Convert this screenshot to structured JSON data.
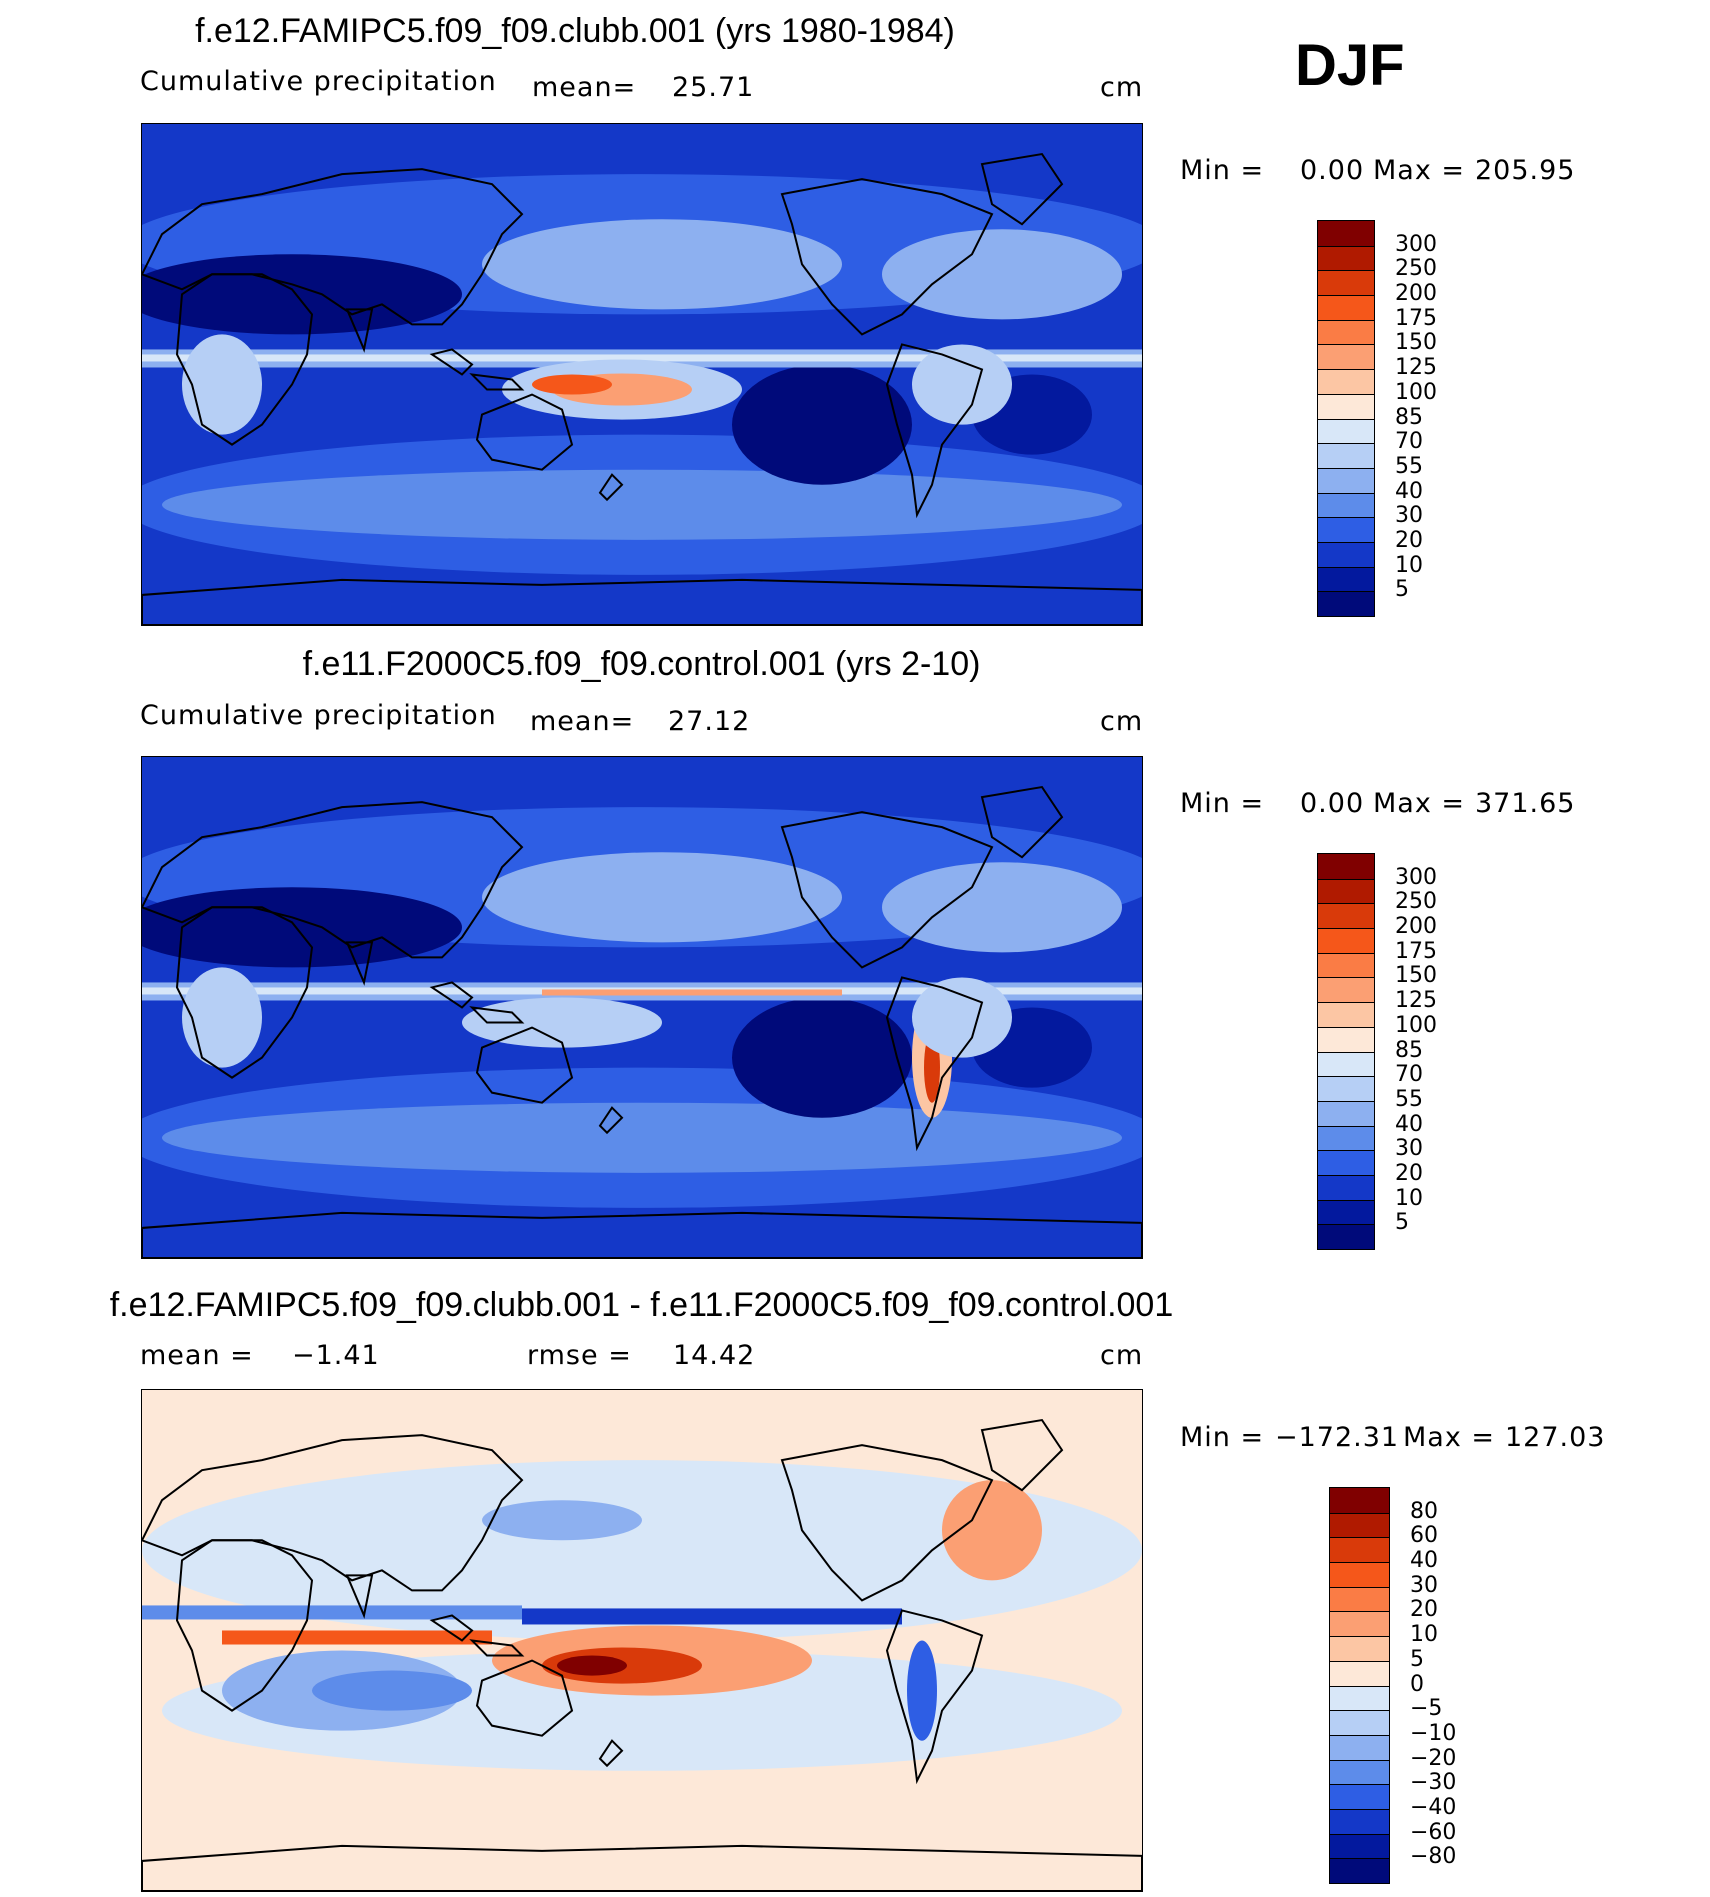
{
  "season": "DJF",
  "chart_data": [
    {
      "type": "heatmap",
      "title": "f.e12.FAMIPC5.f09_f09.clubb.001 (yrs 1980-1984)",
      "variable": "Cumulative precipitation",
      "mean_label": "mean=",
      "mean_value": "25.71",
      "units": "cm",
      "min_label": "Min =",
      "min_value": "0.00",
      "max_label": "Max =",
      "max_value": "205.95",
      "colorbar_levels": [
        "300",
        "250",
        "200",
        "175",
        "150",
        "125",
        "100",
        "85",
        "70",
        "55",
        "40",
        "30",
        "20",
        "10",
        "5"
      ],
      "colorbar_colors": [
        "#800000",
        "#b01a00",
        "#d93a0a",
        "#f5571a",
        "#fa7c45",
        "#fb9f73",
        "#fcc6a4",
        "#fde8d8",
        "#d8e7f8",
        "#b6cff5",
        "#8db0f0",
        "#5d8cea",
        "#2e5ee4",
        "#1438c8",
        "#03199e",
        "#000a7a"
      ]
    },
    {
      "type": "heatmap",
      "title": "f.e11.F2000C5.f09_f09.control.001 (yrs 2-10)",
      "variable": "Cumulative precipitation",
      "mean_label": "mean=",
      "mean_value": "27.12",
      "units": "cm",
      "min_label": "Min =",
      "min_value": "0.00",
      "max_label": "Max =",
      "max_value": "371.65",
      "colorbar_levels": [
        "300",
        "250",
        "200",
        "175",
        "150",
        "125",
        "100",
        "85",
        "70",
        "55",
        "40",
        "30",
        "20",
        "10",
        "5"
      ],
      "colorbar_colors": [
        "#800000",
        "#b01a00",
        "#d93a0a",
        "#f5571a",
        "#fa7c45",
        "#fb9f73",
        "#fcc6a4",
        "#fde8d8",
        "#d8e7f8",
        "#b6cff5",
        "#8db0f0",
        "#5d8cea",
        "#2e5ee4",
        "#1438c8",
        "#03199e",
        "#000a7a"
      ]
    },
    {
      "type": "heatmap",
      "title": "f.e12.FAMIPC5.f09_f09.clubb.001 - f.e11.F2000C5.f09_f09.control.001",
      "variable": "",
      "mean_label": "mean =",
      "mean_value": "−1.41",
      "rmse_label": "rmse =",
      "rmse_value": "14.42",
      "units": "cm",
      "min_label": "Min =",
      "min_value": "−172.31",
      "max_label": "Max =",
      "max_value": "127.03",
      "colorbar_levels": [
        "80",
        "60",
        "40",
        "30",
        "20",
        "10",
        "5",
        "0",
        "−5",
        "−10",
        "−20",
        "−30",
        "−40",
        "−60",
        "−80"
      ],
      "colorbar_colors": [
        "#800000",
        "#b01a00",
        "#d93a0a",
        "#f5571a",
        "#fa7c45",
        "#fb9f73",
        "#fcc6a4",
        "#fde8d8",
        "#d8e7f8",
        "#b6cff5",
        "#8db0f0",
        "#5d8cea",
        "#2e5ee4",
        "#1438c8",
        "#03199e",
        "#000a7a"
      ]
    }
  ]
}
